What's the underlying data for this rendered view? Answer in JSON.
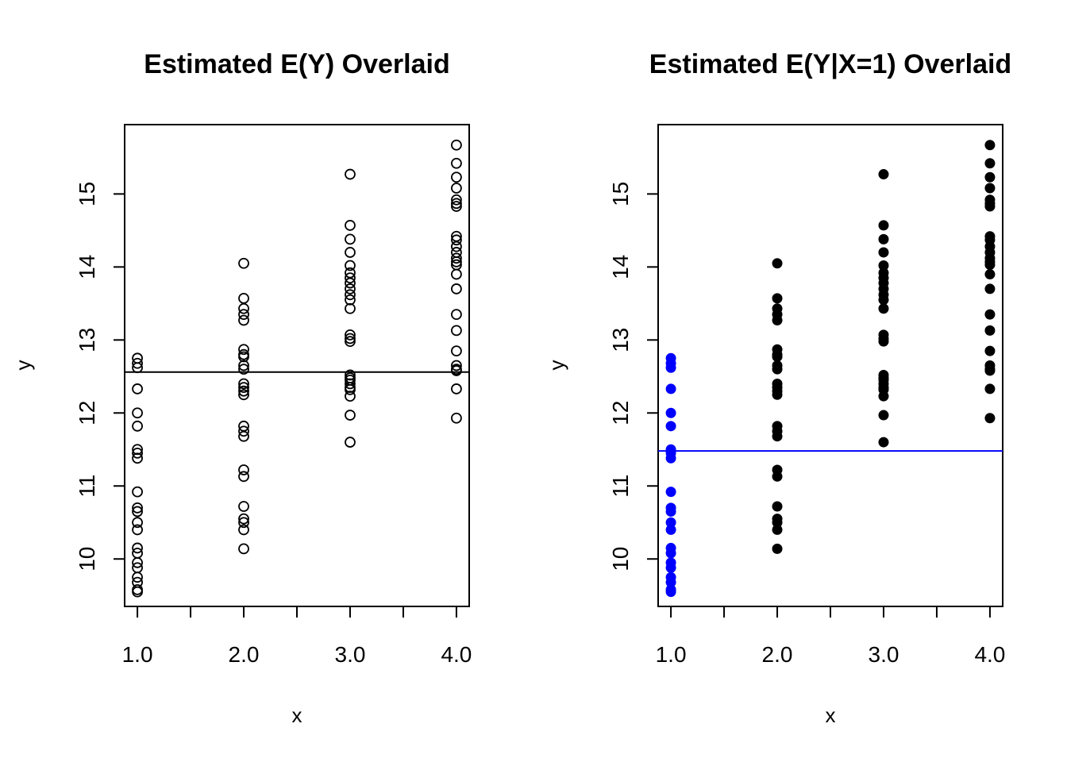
{
  "chart_data": [
    {
      "type": "scatter",
      "title": "Estimated E(Y) Overlaid",
      "xlabel": "x",
      "ylabel": "y",
      "xlim": [
        0.88,
        4.12
      ],
      "ylim": [
        9.35,
        15.95
      ],
      "x_ticks": [
        1.0,
        1.5,
        2.0,
        2.5,
        3.0,
        3.5,
        4.0
      ],
      "x_tick_labels": [
        "1.0",
        "",
        "2.0",
        "",
        "3.0",
        "",
        "4.0"
      ],
      "y_ticks": [
        10,
        11,
        12,
        13,
        14,
        15
      ],
      "y_tick_labels": [
        "10",
        "11",
        "12",
        "13",
        "14",
        "15"
      ],
      "marker": "open-circle",
      "point_color": "#000000",
      "hline": {
        "y": 12.56,
        "color": "#000000"
      },
      "series": [
        {
          "x": 1,
          "values": [
            12.75,
            12.68,
            12.62,
            12.33,
            12.0,
            11.82,
            11.5,
            11.45,
            11.38,
            10.92,
            10.7,
            10.65,
            10.5,
            10.4,
            10.15,
            10.08,
            9.95,
            9.88,
            9.75,
            9.68,
            9.58,
            9.55
          ]
        },
        {
          "x": 2,
          "values": [
            14.05,
            13.57,
            13.43,
            13.35,
            13.27,
            12.87,
            12.8,
            12.77,
            12.65,
            12.6,
            12.4,
            12.35,
            12.3,
            12.25,
            11.82,
            11.75,
            11.68,
            11.22,
            11.13,
            10.72,
            10.55,
            10.5,
            10.4,
            10.14
          ]
        },
        {
          "x": 3,
          "values": [
            15.27,
            14.57,
            14.38,
            14.2,
            14.02,
            13.92,
            13.85,
            13.78,
            13.7,
            13.62,
            13.55,
            13.43,
            13.07,
            13.02,
            12.98,
            12.52,
            12.48,
            12.45,
            12.4,
            12.35,
            12.32,
            12.23,
            11.97,
            11.6
          ]
        },
        {
          "x": 4,
          "values": [
            15.67,
            15.42,
            15.23,
            15.08,
            14.92,
            14.87,
            14.83,
            14.42,
            14.37,
            14.28,
            14.2,
            14.12,
            14.07,
            14.03,
            13.9,
            13.7,
            13.35,
            13.13,
            12.85,
            12.65,
            12.6,
            12.58,
            12.33,
            11.93
          ]
        }
      ]
    },
    {
      "type": "scatter",
      "title": "Estimated E(Y|X=1) Overlaid",
      "xlabel": "x",
      "ylabel": "y",
      "xlim": [
        0.88,
        4.12
      ],
      "ylim": [
        9.35,
        15.95
      ],
      "x_ticks": [
        1.0,
        1.5,
        2.0,
        2.5,
        3.0,
        3.5,
        4.0
      ],
      "x_tick_labels": [
        "1.0",
        "",
        "2.0",
        "",
        "3.0",
        "",
        "4.0"
      ],
      "y_ticks": [
        10,
        11,
        12,
        13,
        14,
        15
      ],
      "y_tick_labels": [
        "10",
        "11",
        "12",
        "13",
        "14",
        "15"
      ],
      "marker": "filled-circle",
      "highlight_color": "#0000ff",
      "point_color": "#000000",
      "hline": {
        "y": 11.48,
        "color": "#0000ff"
      },
      "series": [
        {
          "x": 1,
          "highlight": true,
          "values": [
            12.75,
            12.68,
            12.62,
            12.33,
            12.0,
            11.82,
            11.5,
            11.45,
            11.38,
            10.92,
            10.7,
            10.65,
            10.5,
            10.4,
            10.15,
            10.08,
            9.95,
            9.88,
            9.75,
            9.68,
            9.58,
            9.55
          ]
        },
        {
          "x": 2,
          "highlight": false,
          "values": [
            14.05,
            13.57,
            13.43,
            13.35,
            13.27,
            12.87,
            12.8,
            12.77,
            12.65,
            12.6,
            12.4,
            12.35,
            12.3,
            12.25,
            11.82,
            11.75,
            11.68,
            11.22,
            11.13,
            10.72,
            10.55,
            10.5,
            10.4,
            10.14
          ]
        },
        {
          "x": 3,
          "highlight": false,
          "values": [
            15.27,
            14.57,
            14.38,
            14.2,
            14.02,
            13.92,
            13.85,
            13.78,
            13.7,
            13.62,
            13.55,
            13.43,
            13.07,
            13.02,
            12.98,
            12.52,
            12.48,
            12.45,
            12.4,
            12.35,
            12.32,
            12.23,
            11.97,
            11.6
          ]
        },
        {
          "x": 4,
          "highlight": false,
          "values": [
            15.67,
            15.42,
            15.23,
            15.08,
            14.92,
            14.87,
            14.83,
            14.42,
            14.37,
            14.28,
            14.2,
            14.12,
            14.07,
            14.03,
            13.9,
            13.7,
            13.35,
            13.13,
            12.85,
            12.65,
            12.6,
            12.58,
            12.33,
            11.93
          ]
        }
      ]
    }
  ]
}
